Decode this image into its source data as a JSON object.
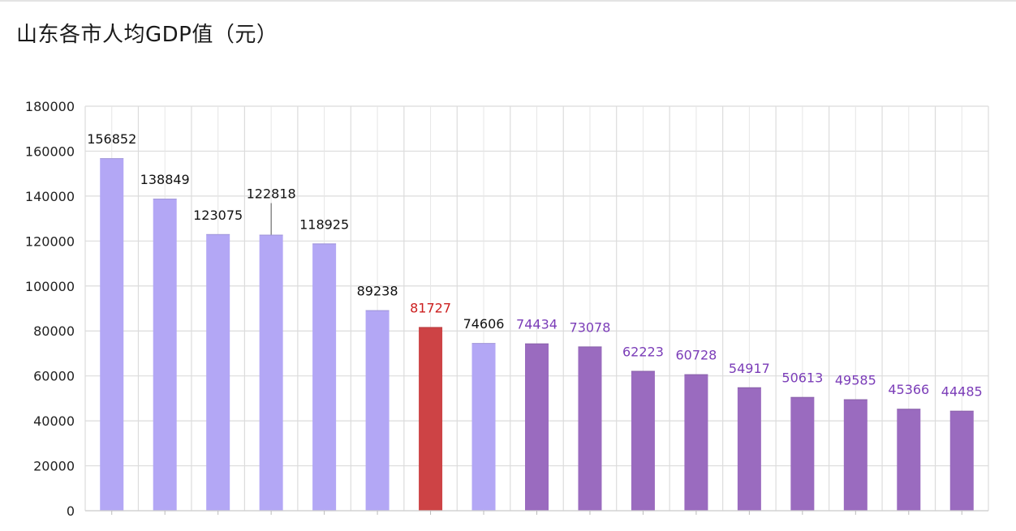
{
  "chart_data": {
    "type": "bar",
    "title": "山东各市人均GDP值（元）",
    "xlabel": "",
    "ylabel": "",
    "ylim": [
      0,
      180000
    ],
    "yticks": [
      0,
      20000,
      40000,
      60000,
      80000,
      100000,
      120000,
      140000,
      160000,
      180000
    ],
    "grid": true,
    "legend": "none",
    "values": [
      156852,
      138849,
      123075,
      122818,
      118925,
      89238,
      81727,
      74606,
      74434,
      73078,
      62223,
      60728,
      54917,
      50613,
      49585,
      45366,
      44485
    ],
    "bar_colors": [
      "#b3a7f5",
      "#b3a7f5",
      "#b3a7f5",
      "#b3a7f5",
      "#b3a7f5",
      "#b3a7f5",
      "#cd4345",
      "#b3a7f5",
      "#9a6bbf",
      "#9a6bbf",
      "#9a6bbf",
      "#9a6bbf",
      "#9a6bbf",
      "#9a6bbf",
      "#9a6bbf",
      "#9a6bbf",
      "#9a6bbf"
    ],
    "label_colors": [
      "#111111",
      "#111111",
      "#111111",
      "#111111",
      "#111111",
      "#111111",
      "#cc1f1f",
      "#111111",
      "#7b3db8",
      "#7b3db8",
      "#7b3db8",
      "#7b3db8",
      "#7b3db8",
      "#7b3db8",
      "#7b3db8",
      "#7b3db8",
      "#7b3db8"
    ]
  }
}
